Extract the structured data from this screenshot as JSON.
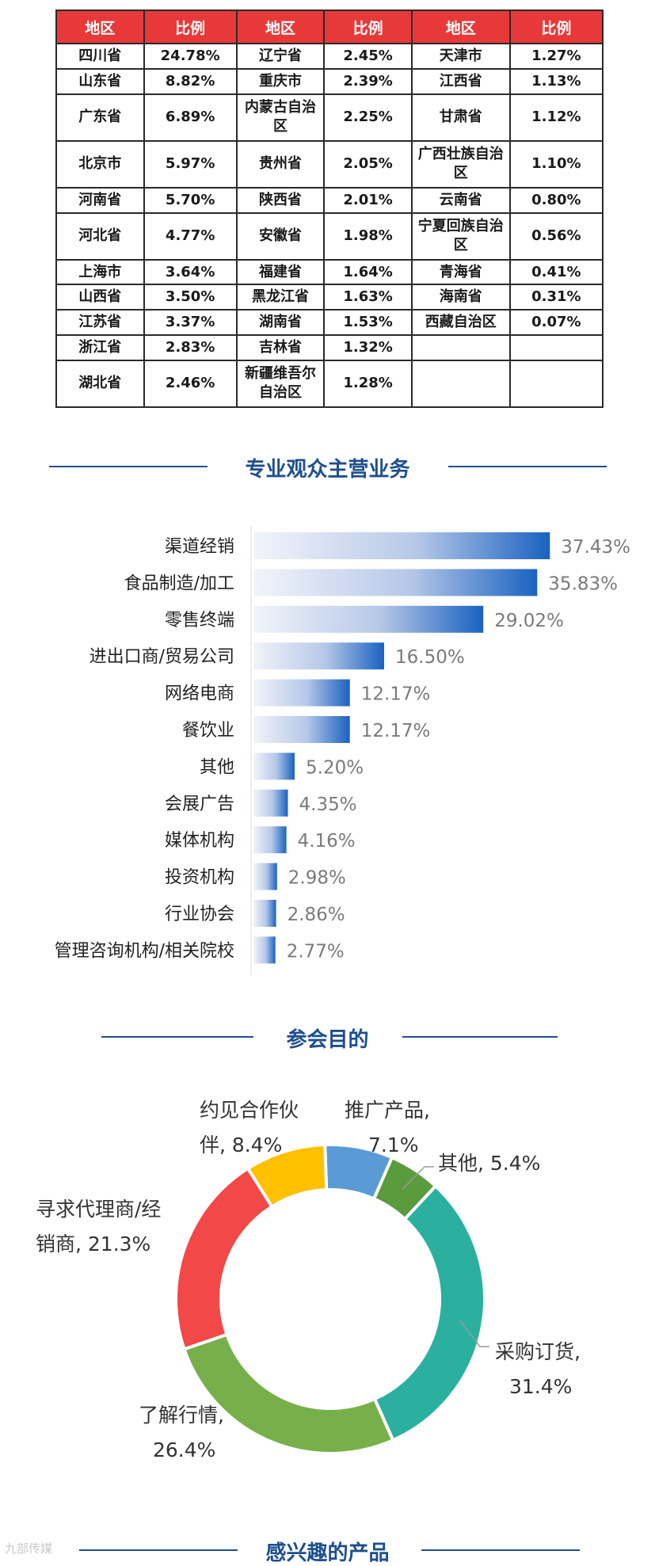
{
  "region_table": {
    "headers": [
      "地区",
      "比例",
      "地区",
      "比例",
      "地区",
      "比例"
    ],
    "rows": [
      [
        "四川省",
        "24.78%",
        "辽宁省",
        "2.45%",
        "天津市",
        "1.27%"
      ],
      [
        "山东省",
        "8.82%",
        "重庆市",
        "2.39%",
        "江西省",
        "1.13%"
      ],
      [
        "广东省",
        "6.89%",
        "内蒙古自治区",
        "2.25%",
        "甘肃省",
        "1.12%"
      ],
      [
        "北京市",
        "5.97%",
        "贵州省",
        "2.05%",
        "广西壮族自治区",
        "1.10%"
      ],
      [
        "河南省",
        "5.70%",
        "陕西省",
        "2.01%",
        "云南省",
        "0.80%"
      ],
      [
        "河北省",
        "4.77%",
        "安徽省",
        "1.98%",
        "宁夏回族自治区",
        "0.56%"
      ],
      [
        "上海市",
        "3.64%",
        "福建省",
        "1.64%",
        "青海省",
        "0.41%"
      ],
      [
        "山西省",
        "3.50%",
        "黑龙江省",
        "1.63%",
        "海南省",
        "0.31%"
      ],
      [
        "江苏省",
        "3.37%",
        "湖南省",
        "1.53%",
        "西藏自治区",
        "0.07%"
      ],
      [
        "浙江省",
        "2.83%",
        "吉林省",
        "1.32%",
        "",
        ""
      ],
      [
        "湖北省",
        "2.46%",
        "新疆维吾尔自治区",
        "1.28%",
        "",
        ""
      ]
    ]
  },
  "section_titles": {
    "business": "专业观众主营业务",
    "purpose": "参会目的",
    "products": "感兴趣的产品"
  },
  "watermark": "九部传媒",
  "colors": {
    "table_header": "#e8393a",
    "title_blue": "#1d4f8e",
    "bar_dark": "#1a62c0",
    "bar_light": "#f2f4fa"
  },
  "chart_data": [
    {
      "type": "bar",
      "orientation": "horizontal",
      "title": "专业观众主营业务",
      "categories": [
        "渠道经销",
        "食品制造/加工",
        "零售终端",
        "进出口商/贸易公司",
        "网络电商",
        "餐饮业",
        "其他",
        "会展广告",
        "媒体机构",
        "投资机构",
        "行业协会",
        "管理咨询机构/相关院校"
      ],
      "values": [
        37.43,
        35.83,
        29.02,
        16.5,
        12.17,
        12.17,
        5.2,
        4.35,
        4.16,
        2.98,
        2.86,
        2.77
      ],
      "value_labels": [
        "37.43%",
        "35.83%",
        "29.02%",
        "16.50%",
        "12.17%",
        "12.17%",
        "5.20%",
        "4.35%",
        "4.16%",
        "2.98%",
        "2.86%",
        "2.77%"
      ],
      "xlim": [
        0,
        40
      ]
    },
    {
      "type": "pie",
      "donut": true,
      "title": "参会目的",
      "categories": [
        "推广产品",
        "其他",
        "采购订货",
        "了解行情",
        "寻求代理商/经销商",
        "约见合作伙伴"
      ],
      "values": [
        7.1,
        5.4,
        31.4,
        26.4,
        21.3,
        8.4
      ],
      "label_lines": [
        [
          "推广产品,",
          "7.1%"
        ],
        [
          "其他, 5.4%"
        ],
        [
          "采购订货,",
          "31.4%"
        ],
        [
          "了解行情,",
          "26.4%"
        ],
        [
          "寻求代理商/经",
          "销商, 21.3%"
        ],
        [
          "约见合作伙",
          "伴, 8.4%"
        ]
      ],
      "colors": [
        "#5b9bd5",
        "#5a9b3e",
        "#2bb0a0",
        "#77b04a",
        "#f24848",
        "#ffc000"
      ]
    }
  ]
}
